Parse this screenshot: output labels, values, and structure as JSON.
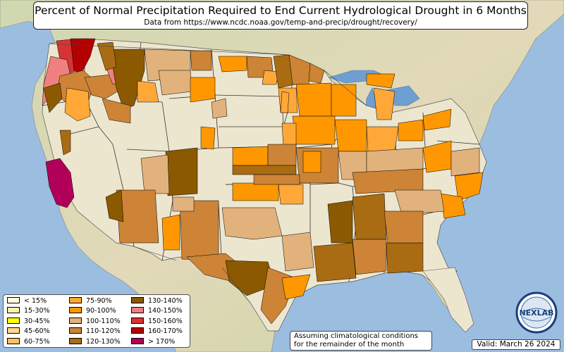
{
  "title": "Percent of Normal Precipitation Required to End Current Hydrological Drought in 6 Months",
  "subtitle": "Data from https://www.ncdc.noaa.gov/temp-and-precip/drought/recovery/",
  "legend": [
    {
      "label": "< 15%",
      "color": "#fffbe0"
    },
    {
      "label": "15-30%",
      "color": "#fff0b0"
    },
    {
      "label": "30-45%",
      "color": "#ffff00"
    },
    {
      "label": "45-60%",
      "color": "#ffd990"
    },
    {
      "label": "60-75%",
      "color": "#ffc061"
    },
    {
      "label": "75-90%",
      "color": "#ffa838"
    },
    {
      "label": "90-100%",
      "color": "#ff9800"
    },
    {
      "label": "100-110%",
      "color": "#e2b27c"
    },
    {
      "label": "110-120%",
      "color": "#cd8436"
    },
    {
      "label": "120-130%",
      "color": "#a96c12"
    },
    {
      "label": "130-140%",
      "color": "#8b5a00"
    },
    {
      "label": "140-150%",
      "color": "#f08080"
    },
    {
      "label": "150-160%",
      "color": "#d63434"
    },
    {
      "label": "160-170%",
      "color": "#b30000"
    },
    {
      "label": "> 170%",
      "color": "#b0005a"
    }
  ],
  "note_line1": "Assuming climatological conditions",
  "note_line2": "for the remainder of the month",
  "valid": "Valid: March 26 2024",
  "logo_text": "NEXLAB",
  "colors": {
    "ocean": "#9bbde0",
    "land": "#e8e1c8",
    "great_lakes": "#6f9fd0"
  }
}
